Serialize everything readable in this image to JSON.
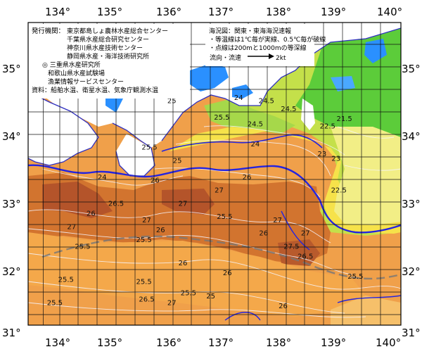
{
  "lon_labels": [
    "134°",
    "135°",
    "136°",
    "137°",
    "138°",
    "139°",
    "140°"
  ],
  "lat_labels": [
    "35°",
    "34°",
    "33°",
    "32°",
    "31°"
  ],
  "publishers": {
    "heading": "発行機関：",
    "lines": [
      "東京都島しょ農林水産総合センター",
      "千葉県水産総合研究センター",
      "神奈川県水産技術センター",
      "静岡県水産・海洋技術研究所",
      "◎ 三重県水産研究所",
      "和歌山県水産試験場",
      "漁業情報サービスセンター"
    ],
    "sources": "資料：船舶水温、衛星水温、気象庁観測水温"
  },
  "map_info": {
    "title": "海況図：関東・東海海況速報",
    "line1": "・等温線は1℃毎が実線、0.5℃毎が破線",
    "line2": "・点線は200mと1000mの等深線",
    "current_label": "流向・流速",
    "current_unit": "2kt"
  },
  "isotherm_labels": [
    {
      "t": "25",
      "lon": 136.2,
      "lat": 34.45
    },
    {
      "t": "25.5",
      "lon": 137.1,
      "lat": 34.2
    },
    {
      "t": "24.5",
      "lon": 137.9,
      "lat": 34.45
    },
    {
      "t": "24",
      "lon": 137.4,
      "lat": 34.5
    },
    {
      "t": "24.5",
      "lon": 138.3,
      "lat": 34.33
    },
    {
      "t": "24.5",
      "lon": 137.7,
      "lat": 34.1
    },
    {
      "t": "24",
      "lon": 137.7,
      "lat": 33.8
    },
    {
      "t": "23",
      "lon": 139.15,
      "lat": 33.58
    },
    {
      "t": "22.5",
      "lon": 139.0,
      "lat": 34.07
    },
    {
      "t": "21.5",
      "lon": 139.3,
      "lat": 34.18
    },
    {
      "t": "23",
      "lon": 138.9,
      "lat": 33.65
    },
    {
      "t": "22.5",
      "lon": 139.2,
      "lat": 33.1
    },
    {
      "t": "25.5",
      "lon": 135.8,
      "lat": 33.75
    },
    {
      "t": "26",
      "lon": 135.9,
      "lat": 33.25
    },
    {
      "t": "25",
      "lon": 136.3,
      "lat": 33.55
    },
    {
      "t": "26",
      "lon": 137.55,
      "lat": 33.3
    },
    {
      "t": "27",
      "lon": 137.05,
      "lat": 33.1
    },
    {
      "t": "27",
      "lon": 136.4,
      "lat": 32.9
    },
    {
      "t": "27",
      "lon": 135.75,
      "lat": 32.65
    },
    {
      "t": "26.5",
      "lon": 135.2,
      "lat": 32.9
    },
    {
      "t": "26",
      "lon": 134.75,
      "lat": 32.75
    },
    {
      "t": "24",
      "lon": 134.95,
      "lat": 33.3
    },
    {
      "t": "27",
      "lon": 134.4,
      "lat": 32.55
    },
    {
      "t": "26",
      "lon": 137.85,
      "lat": 32.45
    },
    {
      "t": "25.5",
      "lon": 137.15,
      "lat": 32.7
    },
    {
      "t": "26",
      "lon": 136.0,
      "lat": 32.5
    },
    {
      "t": "25.5",
      "lon": 135.7,
      "lat": 32.35
    },
    {
      "t": "25.5",
      "lon": 134.6,
      "lat": 32.25
    },
    {
      "t": "25.5",
      "lon": 135.7,
      "lat": 31.72
    },
    {
      "t": "26",
      "lon": 136.4,
      "lat": 32.0
    },
    {
      "t": "27",
      "lon": 138.1,
      "lat": 32.65
    },
    {
      "t": "27",
      "lon": 138.6,
      "lat": 32.45
    },
    {
      "t": "27.5",
      "lon": 138.35,
      "lat": 32.25
    },
    {
      "t": "26.5",
      "lon": 138.6,
      "lat": 32.1
    },
    {
      "t": "26",
      "lon": 137.2,
      "lat": 31.85
    },
    {
      "t": "25",
      "lon": 136.9,
      "lat": 31.5
    },
    {
      "t": "25.5",
      "lon": 139.5,
      "lat": 31.8
    },
    {
      "t": "26",
      "lon": 138.2,
      "lat": 31.35
    },
    {
      "t": "25.5",
      "lon": 134.3,
      "lat": 31.75
    },
    {
      "t": "25.5",
      "lon": 134.1,
      "lat": 31.4
    },
    {
      "t": "26.5",
      "lon": 135.75,
      "lat": 31.45
    },
    {
      "t": "27",
      "lon": 136.2,
      "lat": 31.4
    },
    {
      "t": "25.5",
      "lon": 136.5,
      "lat": 31.55
    }
  ],
  "colors": {
    "land": "#ffffff",
    "coast_fill": "#2a90ff",
    "grid": "#000000",
    "isotherm": "#ffffff",
    "current": "#2222dd"
  }
}
